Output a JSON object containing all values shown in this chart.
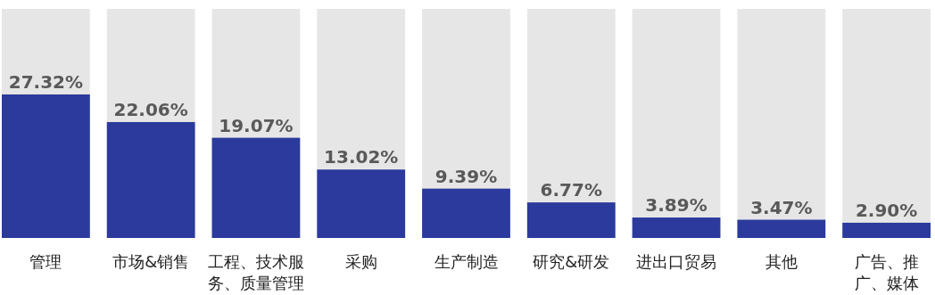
{
  "chart_data": {
    "type": "bar",
    "categories": [
      "管理",
      "市场&销售",
      "工程、技术服务、质量管理",
      "采购",
      "生产制造",
      "研究&研发",
      "进出口贸易",
      "其他",
      "广告、推广、媒体"
    ],
    "values": [
      27.32,
      22.06,
      19.07,
      13.02,
      9.39,
      6.77,
      3.89,
      3.47,
      2.9
    ],
    "value_labels": [
      "27.32%",
      "22.06%",
      "19.07%",
      "13.02%",
      "9.39%",
      "6.77%",
      "3.89%",
      "3.47%",
      "2.90%"
    ],
    "color": "#2b3a9c",
    "ylim": [
      0,
      43.6
    ],
    "tick_labels": "x"
  }
}
